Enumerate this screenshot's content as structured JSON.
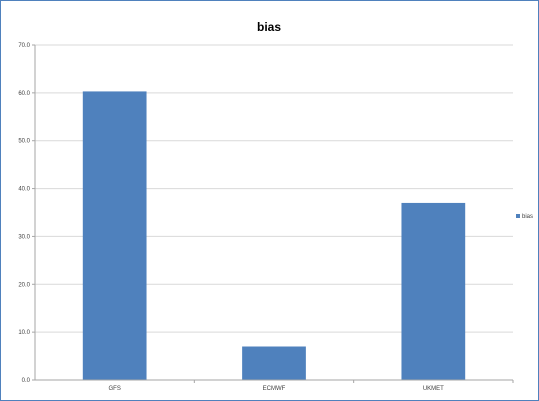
{
  "chart_data": {
    "type": "bar",
    "title": "bias",
    "categories": [
      "GFS",
      "ECMWF",
      "UKMET"
    ],
    "series": [
      {
        "name": "bias",
        "values": [
          60.3,
          7.0,
          37.0
        ],
        "color": "#4f81bd"
      }
    ],
    "ylim": [
      0,
      70
    ],
    "yticks": [
      "0.0",
      "10.0",
      "20.0",
      "30.0",
      "40.0",
      "50.0",
      "60.0",
      "70.0"
    ],
    "xlabel": "",
    "ylabel": "",
    "grid": true,
    "legend_position": "right"
  },
  "colors": {
    "frame_border": "#4f81bd",
    "gridline": "#d9d9d9",
    "axis": "#a6a6a6"
  }
}
